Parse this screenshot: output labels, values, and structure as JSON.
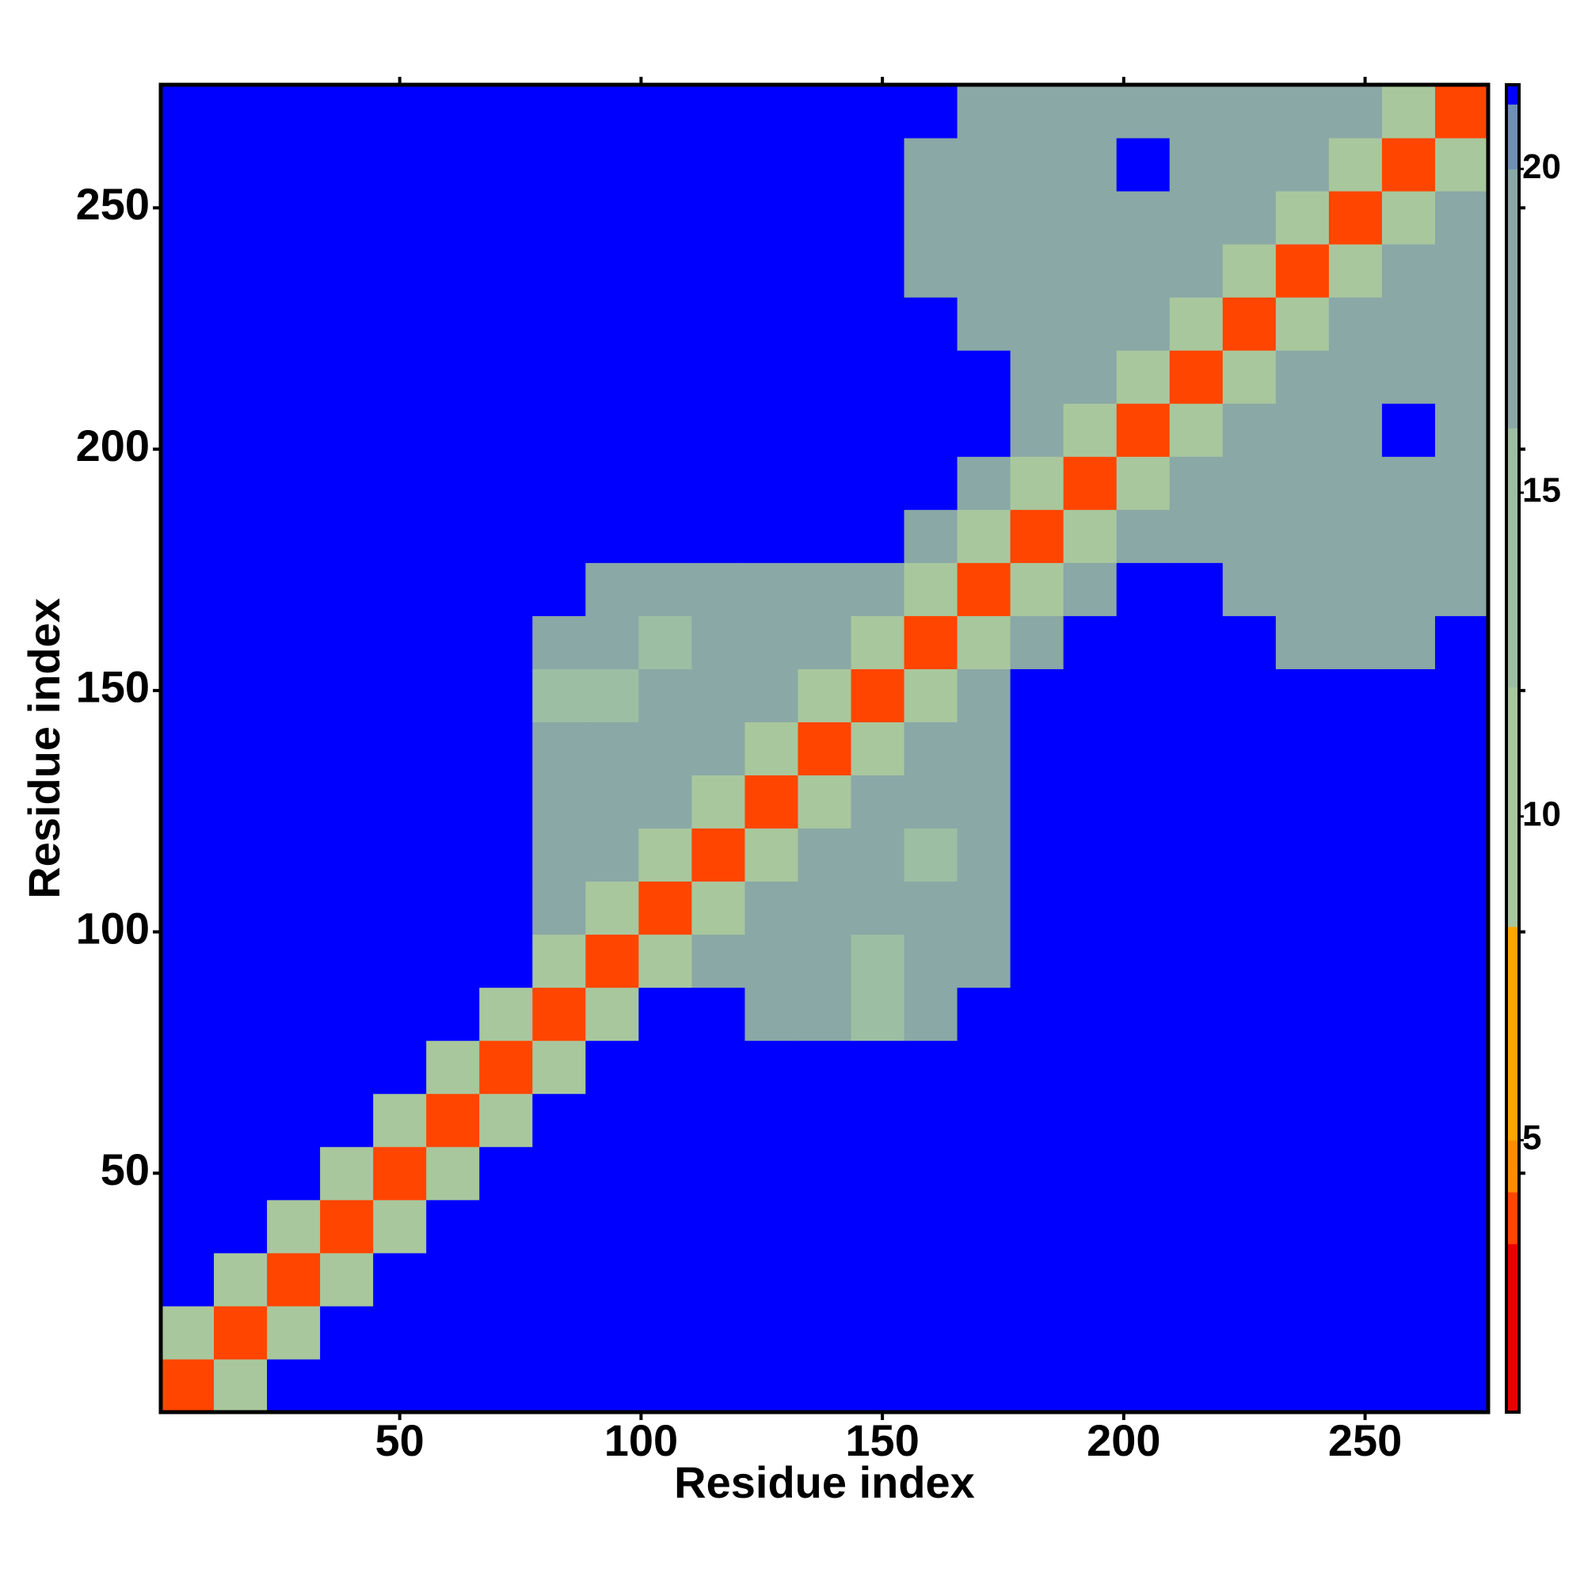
{
  "chart_data": {
    "type": "heatmap",
    "xlabel": "Residue index",
    "ylabel": "Residue index",
    "xlim": [
      0.5,
      275.5
    ],
    "ylim": [
      0.5,
      275.5
    ],
    "xticks": [
      50,
      100,
      150,
      200,
      250
    ],
    "yticks": [
      50,
      100,
      150,
      200,
      250
    ],
    "xbins": [
      0.5,
      11.5,
      22.5,
      33.5,
      44.5,
      55.5,
      66.5,
      77.5,
      88.5,
      99.5,
      110.5,
      121.5,
      132.5,
      143.5,
      154.5,
      165.5,
      176.5,
      187.5,
      198.5,
      209.5,
      220.5,
      231.5,
      242.5,
      253.5,
      264.5,
      275.5
    ],
    "ybins": [
      0.5,
      11.5,
      22.5,
      33.5,
      44.5,
      55.5,
      66.5,
      77.5,
      88.5,
      99.5,
      110.5,
      121.5,
      132.5,
      143.5,
      154.5,
      165.5,
      176.5,
      187.5,
      198.5,
      209.5,
      220.5,
      231.5,
      242.5,
      253.5,
      264.5,
      275.5
    ],
    "values": [
      [
        4,
        11,
        21,
        21,
        21,
        21,
        21,
        21,
        21,
        21,
        21,
        21,
        21,
        21,
        21,
        21,
        21,
        21,
        21,
        21,
        21,
        21,
        21,
        21,
        21
      ],
      [
        11,
        4,
        11,
        21,
        21,
        21,
        21,
        21,
        21,
        21,
        21,
        21,
        21,
        21,
        21,
        21,
        21,
        21,
        21,
        21,
        21,
        21,
        21,
        21,
        21
      ],
      [
        21,
        11,
        4,
        11,
        21,
        21,
        21,
        21,
        21,
        21,
        21,
        21,
        21,
        21,
        21,
        21,
        21,
        21,
        21,
        21,
        21,
        21,
        21,
        21,
        21
      ],
      [
        21,
        21,
        11,
        4,
        11,
        21,
        21,
        21,
        21,
        21,
        21,
        21,
        21,
        21,
        21,
        21,
        21,
        21,
        21,
        21,
        21,
        21,
        21,
        21,
        21
      ],
      [
        21,
        21,
        21,
        11,
        4,
        11,
        21,
        21,
        21,
        21,
        21,
        21,
        21,
        21,
        21,
        21,
        21,
        21,
        21,
        21,
        21,
        21,
        21,
        21,
        21
      ],
      [
        21,
        21,
        21,
        21,
        11,
        4,
        11,
        21,
        21,
        21,
        21,
        21,
        21,
        21,
        21,
        21,
        21,
        21,
        21,
        21,
        21,
        21,
        21,
        21,
        21
      ],
      [
        21,
        21,
        21,
        21,
        21,
        11,
        4,
        11,
        21,
        21,
        21,
        21,
        21,
        21,
        21,
        21,
        21,
        21,
        21,
        21,
        21,
        21,
        21,
        21,
        21
      ],
      [
        21,
        21,
        21,
        21,
        21,
        21,
        11,
        4,
        11,
        21,
        21,
        16,
        16,
        13,
        16,
        21,
        21,
        21,
        21,
        21,
        21,
        21,
        21,
        21,
        21
      ],
      [
        21,
        21,
        21,
        21,
        21,
        21,
        21,
        11,
        4,
        11,
        16,
        16,
        16,
        13,
        16,
        16,
        21,
        21,
        21,
        21,
        21,
        21,
        21,
        21,
        21
      ],
      [
        21,
        21,
        21,
        21,
        21,
        21,
        21,
        16,
        11,
        4,
        11,
        16,
        16,
        16,
        16,
        16,
        21,
        21,
        21,
        21,
        21,
        21,
        21,
        21,
        21
      ],
      [
        21,
        21,
        21,
        21,
        21,
        21,
        21,
        16,
        16,
        11,
        4,
        11,
        16,
        16,
        13,
        16,
        21,
        21,
        21,
        21,
        21,
        21,
        21,
        21,
        21
      ],
      [
        21,
        21,
        21,
        21,
        21,
        21,
        21,
        16,
        16,
        16,
        11,
        4,
        11,
        16,
        16,
        16,
        21,
        21,
        21,
        21,
        21,
        21,
        21,
        21,
        21
      ],
      [
        21,
        21,
        21,
        21,
        21,
        21,
        21,
        16,
        16,
        16,
        16,
        11,
        4,
        11,
        16,
        16,
        21,
        21,
        21,
        21,
        21,
        21,
        21,
        21,
        21
      ],
      [
        21,
        21,
        21,
        21,
        21,
        21,
        21,
        13,
        13,
        16,
        16,
        16,
        11,
        4,
        11,
        16,
        21,
        21,
        21,
        21,
        21,
        21,
        21,
        21,
        21
      ],
      [
        21,
        21,
        21,
        21,
        21,
        21,
        21,
        16,
        16,
        13,
        16,
        16,
        16,
        11,
        4,
        11,
        16,
        21,
        21,
        21,
        21,
        16,
        16,
        16,
        21
      ],
      [
        21,
        21,
        21,
        21,
        21,
        21,
        21,
        21,
        16,
        16,
        16,
        16,
        16,
        16,
        11,
        4,
        11,
        16,
        21,
        21,
        16,
        16,
        16,
        16,
        16
      ],
      [
        21,
        21,
        21,
        21,
        21,
        21,
        21,
        21,
        21,
        21,
        21,
        21,
        21,
        21,
        16,
        11,
        4,
        11,
        16,
        16,
        16,
        16,
        16,
        16,
        16
      ],
      [
        21,
        21,
        21,
        21,
        21,
        21,
        21,
        21,
        21,
        21,
        21,
        21,
        21,
        21,
        21,
        16,
        11,
        4,
        11,
        16,
        16,
        16,
        16,
        16,
        16
      ],
      [
        21,
        21,
        21,
        21,
        21,
        21,
        21,
        21,
        21,
        21,
        21,
        21,
        21,
        21,
        21,
        21,
        16,
        11,
        4,
        11,
        16,
        16,
        16,
        21,
        16
      ],
      [
        21,
        21,
        21,
        21,
        21,
        21,
        21,
        21,
        21,
        21,
        21,
        21,
        21,
        21,
        21,
        21,
        16,
        16,
        11,
        4,
        11,
        16,
        16,
        16,
        16
      ],
      [
        21,
        21,
        21,
        21,
        21,
        21,
        21,
        21,
        21,
        21,
        21,
        21,
        21,
        21,
        21,
        16,
        16,
        16,
        16,
        11,
        4,
        11,
        16,
        16,
        16
      ],
      [
        21,
        21,
        21,
        21,
        21,
        21,
        21,
        21,
        21,
        21,
        21,
        21,
        21,
        21,
        16,
        16,
        16,
        16,
        16,
        16,
        11,
        4,
        11,
        16,
        16
      ],
      [
        21,
        21,
        21,
        21,
        21,
        21,
        21,
        21,
        21,
        21,
        21,
        21,
        21,
        21,
        16,
        16,
        16,
        16,
        16,
        16,
        16,
        11,
        4,
        11,
        16
      ],
      [
        21,
        21,
        21,
        21,
        21,
        21,
        21,
        21,
        21,
        21,
        21,
        21,
        21,
        21,
        16,
        16,
        16,
        16,
        21,
        16,
        16,
        16,
        11,
        4,
        11
      ],
      [
        21,
        21,
        21,
        21,
        21,
        21,
        21,
        21,
        21,
        21,
        21,
        21,
        21,
        21,
        21,
        16,
        16,
        16,
        16,
        16,
        16,
        16,
        16,
        11,
        4
      ]
    ],
    "clim": [
      0.8,
      21.3
    ],
    "cticks": [
      5,
      10,
      15,
      20
    ],
    "colorscale": [
      {
        "value": 0.8,
        "color": "#e80000"
      },
      {
        "value": 3.4,
        "color": "#ff4500"
      },
      {
        "value": 4.2,
        "color": "#ff8c00"
      },
      {
        "value": 5,
        "color": "#ffa500"
      },
      {
        "value": 8.3,
        "color": "#a9c79d"
      },
      {
        "value": 12,
        "color": "#9cbfa3"
      },
      {
        "value": 16,
        "color": "#8aa8a6"
      },
      {
        "value": 20,
        "color": "#6f8fb5"
      },
      {
        "value": 21,
        "color": "#0000ff"
      }
    ]
  }
}
